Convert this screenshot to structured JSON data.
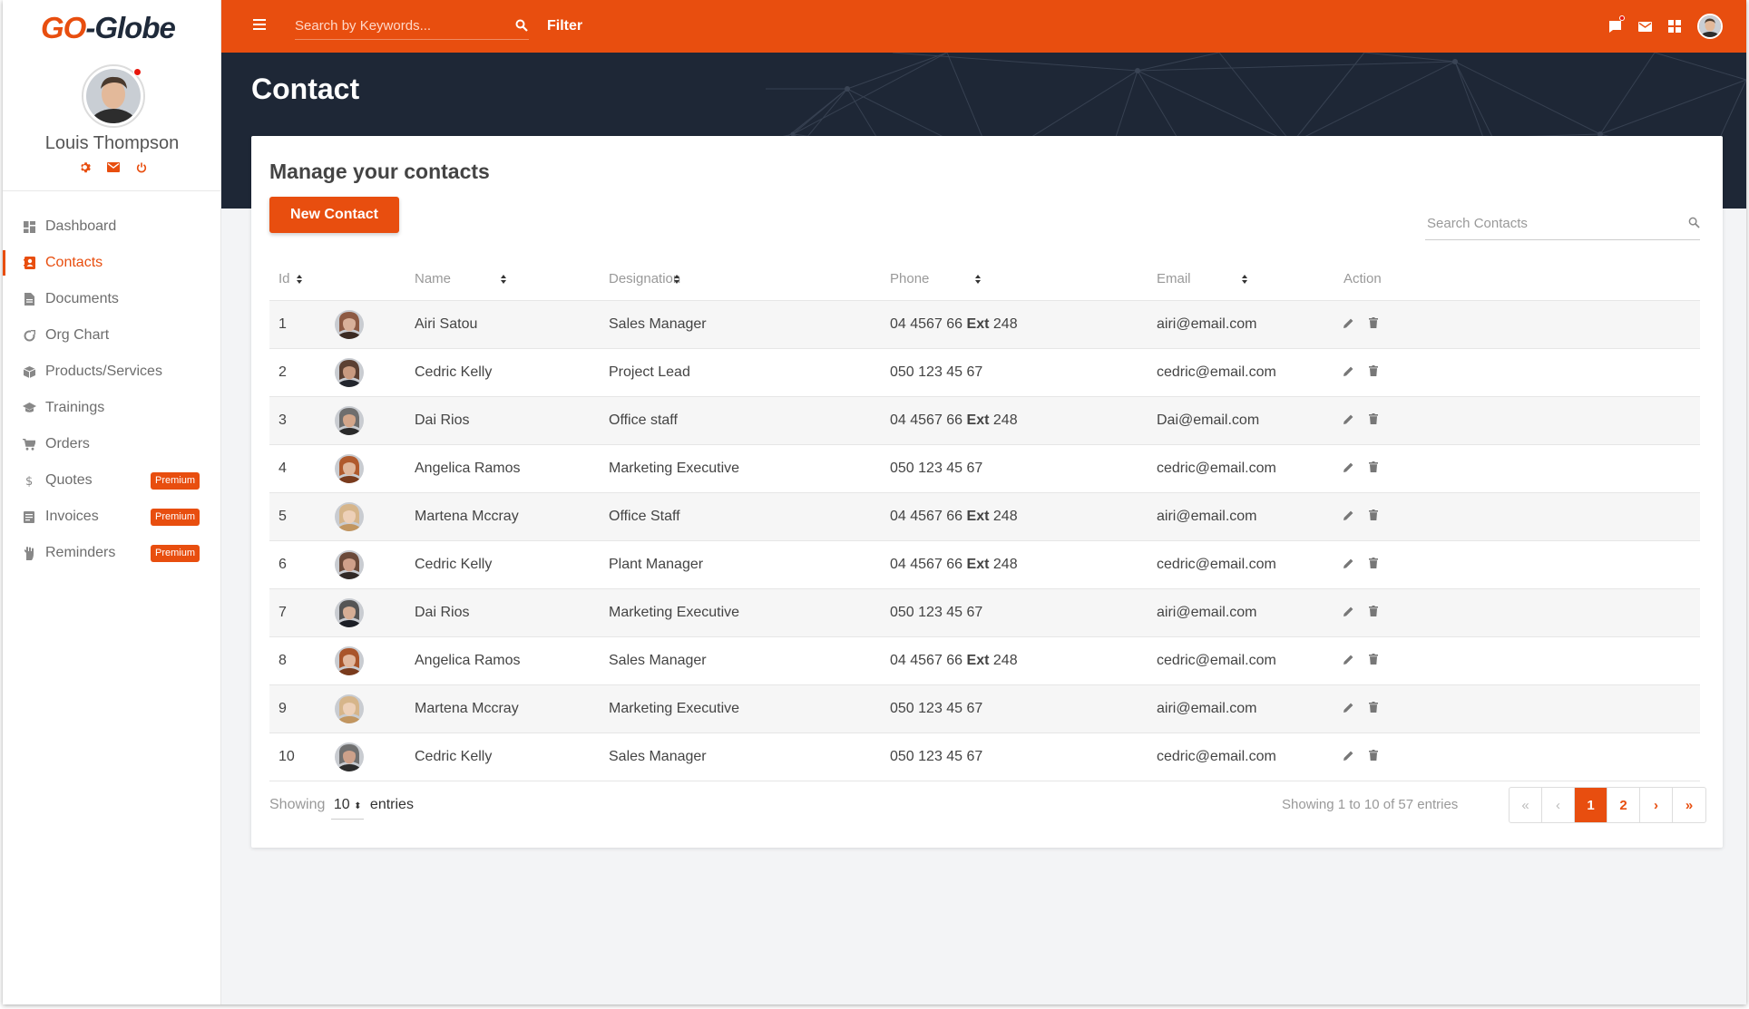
{
  "brand": {
    "part1": "GO",
    "part2": "-Globe"
  },
  "user": {
    "name": "Louis Thompson",
    "icons": [
      "gear-icon",
      "mail-icon",
      "power-icon"
    ]
  },
  "sidebar": {
    "items": [
      {
        "label": "Dashboard",
        "icon": "dashboard-icon",
        "active": false,
        "badge": ""
      },
      {
        "label": "Contacts",
        "icon": "contacts-icon",
        "active": true,
        "badge": ""
      },
      {
        "label": "Documents",
        "icon": "document-icon",
        "active": false,
        "badge": ""
      },
      {
        "label": "Org Chart",
        "icon": "org-chart-icon",
        "active": false,
        "badge": ""
      },
      {
        "label": "Products/Services",
        "icon": "box-icon",
        "active": false,
        "badge": ""
      },
      {
        "label": "Trainings",
        "icon": "graduation-cap-icon",
        "active": false,
        "badge": ""
      },
      {
        "label": "Orders",
        "icon": "cart-icon",
        "active": false,
        "badge": ""
      },
      {
        "label": "Quotes",
        "icon": "dollar-icon",
        "active": false,
        "badge": "Premium"
      },
      {
        "label": "Invoices",
        "icon": "invoice-icon",
        "active": false,
        "badge": "Premium"
      },
      {
        "label": "Reminders",
        "icon": "hand-icon",
        "active": false,
        "badge": "Premium"
      }
    ]
  },
  "topbar": {
    "search_placeholder": "Search by Keywords...",
    "filter_label": "Filter",
    "icons": [
      "chat-icon",
      "mail-icon",
      "apps-grid-icon",
      "user-avatar"
    ]
  },
  "page": {
    "title": "Contact"
  },
  "card": {
    "title": "Manage your contacts",
    "new_button": "New Contact",
    "search_placeholder": "Search Contacts"
  },
  "table": {
    "headers": [
      "Id",
      "",
      "Name",
      "Designation",
      "Phone",
      "Email",
      "Action"
    ],
    "rows": [
      {
        "id": "1",
        "name": "Airi Satou",
        "designation": "Sales Manager",
        "phone": "04 4567 66",
        "ext": "Ext",
        "extnum": "248",
        "email": "airi@email.com"
      },
      {
        "id": "2",
        "name": "Cedric Kelly",
        "designation": "Project Lead",
        "phone": "050 123 45 67",
        "ext": "",
        "extnum": "",
        "email": "cedric@email.com"
      },
      {
        "id": "3",
        "name": "Dai Rios",
        "designation": "Office staff",
        "phone": "04 4567 66",
        "ext": "Ext",
        "extnum": "248",
        "email": "Dai@email.com"
      },
      {
        "id": "4",
        "name": "Angelica Ramos",
        "designation": "Marketing Executive",
        "phone": "050 123 45 67",
        "ext": "",
        "extnum": "",
        "email": "cedric@email.com"
      },
      {
        "id": "5",
        "name": "Martena Mccray",
        "designation": "Office Staff",
        "phone": "04 4567 66",
        "ext": "Ext",
        "extnum": "248",
        "email": "airi@email.com"
      },
      {
        "id": "6",
        "name": "Cedric Kelly",
        "designation": "Plant Manager",
        "phone": "04 4567 66",
        "ext": "Ext",
        "extnum": "248",
        "email": "cedric@email.com"
      },
      {
        "id": "7",
        "name": "Dai Rios",
        "designation": "Marketing Executive",
        "phone": "050 123 45 67",
        "ext": "",
        "extnum": "",
        "email": "airi@email.com"
      },
      {
        "id": "8",
        "name": "Angelica Ramos",
        "designation": "Sales Manager",
        "phone": "04 4567 66",
        "ext": "Ext",
        "extnum": "248",
        "email": "cedric@email.com"
      },
      {
        "id": "9",
        "name": "Martena Mccray",
        "designation": "Marketing Executive",
        "phone": "050 123 45 67",
        "ext": "",
        "extnum": "",
        "email": "airi@email.com"
      },
      {
        "id": "10",
        "name": "Cedric Kelly",
        "designation": "Sales Manager",
        "phone": "050 123 45 67",
        "ext": "",
        "extnum": "",
        "email": "cedric@email.com"
      }
    ]
  },
  "footer": {
    "showing_prefix": "Showing",
    "page_size": "10",
    "entries_label": "entries",
    "summary": "Showing 1 to 10 of 57 entries",
    "pager": {
      "first": "«",
      "prev": "‹",
      "pages": [
        "1",
        "2"
      ],
      "current": "1",
      "next": "›",
      "last": "»"
    }
  },
  "colors": {
    "accent": "#e84e0f",
    "header_dark": "#1e2736",
    "sidebar_bg": "#ffffff",
    "row_stripe": "#f6f6f6"
  }
}
